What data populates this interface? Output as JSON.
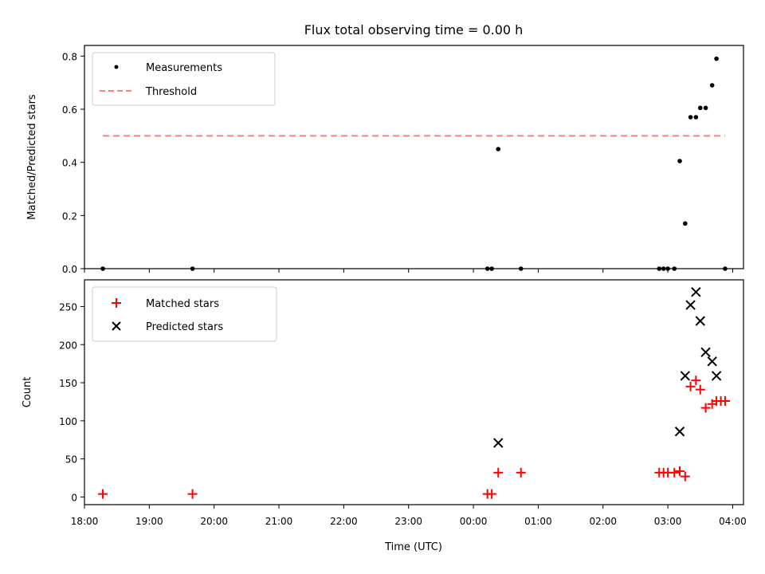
{
  "title": "Flux total observing time = 0.00 h",
  "colors": {
    "measurements": "#000000",
    "threshold": "#ff7f7f",
    "matched": "#ff0000",
    "predicted": "#000000"
  },
  "chart_data": [
    {
      "type": "scatter",
      "ylabel": "Matched/Predicted stars",
      "xlim": [
        "18:00",
        "04:10"
      ],
      "ylim": [
        0,
        0.84
      ],
      "yticks": [
        "0.0",
        "0.2",
        "0.4",
        "0.6",
        "0.8"
      ],
      "grid": false,
      "legend": {
        "placement": "top-left",
        "entries": [
          {
            "label": "Measurements",
            "marker": "dot"
          },
          {
            "label": "Threshold",
            "marker": "dashed-line"
          }
        ]
      },
      "series": [
        {
          "name": "Measurements",
          "x": [
            "18:17",
            "19:40",
            "00:13",
            "00:17",
            "00:23",
            "00:44",
            "02:52",
            "02:56",
            "03:00",
            "03:06",
            "03:11",
            "03:16",
            "03:21",
            "03:26",
            "03:30",
            "03:35",
            "03:41",
            "03:45",
            "03:53"
          ],
          "y": [
            0.0,
            0.0,
            0.0,
            0.0,
            0.45,
            0.0,
            0.0,
            0.0,
            0.0,
            0.0,
            0.405,
            0.17,
            0.57,
            0.57,
            0.605,
            0.605,
            0.69,
            0.79,
            0.0
          ]
        },
        {
          "name": "Threshold",
          "x": [
            "18:17",
            "03:53"
          ],
          "y": [
            0.5,
            0.5
          ]
        }
      ]
    },
    {
      "type": "scatter",
      "xlabel": "Time (UTC)",
      "ylabel": "Count",
      "xlim": [
        "18:00",
        "04:10"
      ],
      "ylim": [
        -10,
        285
      ],
      "xticks": [
        "18:00",
        "19:00",
        "20:00",
        "21:00",
        "22:00",
        "23:00",
        "00:00",
        "01:00",
        "02:00",
        "03:00",
        "04:00"
      ],
      "yticks": [
        "0",
        "50",
        "100",
        "150",
        "200",
        "250"
      ],
      "grid": false,
      "legend": {
        "placement": "top-left",
        "entries": [
          {
            "label": "Matched stars",
            "marker": "plus"
          },
          {
            "label": "Predicted stars",
            "marker": "cross"
          }
        ]
      },
      "series": [
        {
          "name": "Matched stars",
          "x": [
            "18:17",
            "19:40",
            "00:13",
            "00:17",
            "00:23",
            "00:44",
            "02:52",
            "02:56",
            "03:00",
            "03:06",
            "03:11",
            "03:16",
            "03:21",
            "03:26",
            "03:30",
            "03:35",
            "03:41",
            "03:45",
            "03:49",
            "03:53"
          ],
          "y": [
            4,
            4,
            4,
            4,
            32,
            32,
            32,
            32,
            32,
            32,
            34,
            27,
            145,
            153,
            141,
            117,
            122,
            126,
            126,
            126
          ]
        },
        {
          "name": "Predicted stars",
          "x": [
            "00:23",
            "03:11",
            "03:16",
            "03:21",
            "03:26",
            "03:30",
            "03:35",
            "03:41",
            "03:45"
          ],
          "y": [
            71,
            86,
            159,
            252,
            269,
            231,
            190,
            178,
            159
          ]
        }
      ]
    }
  ]
}
